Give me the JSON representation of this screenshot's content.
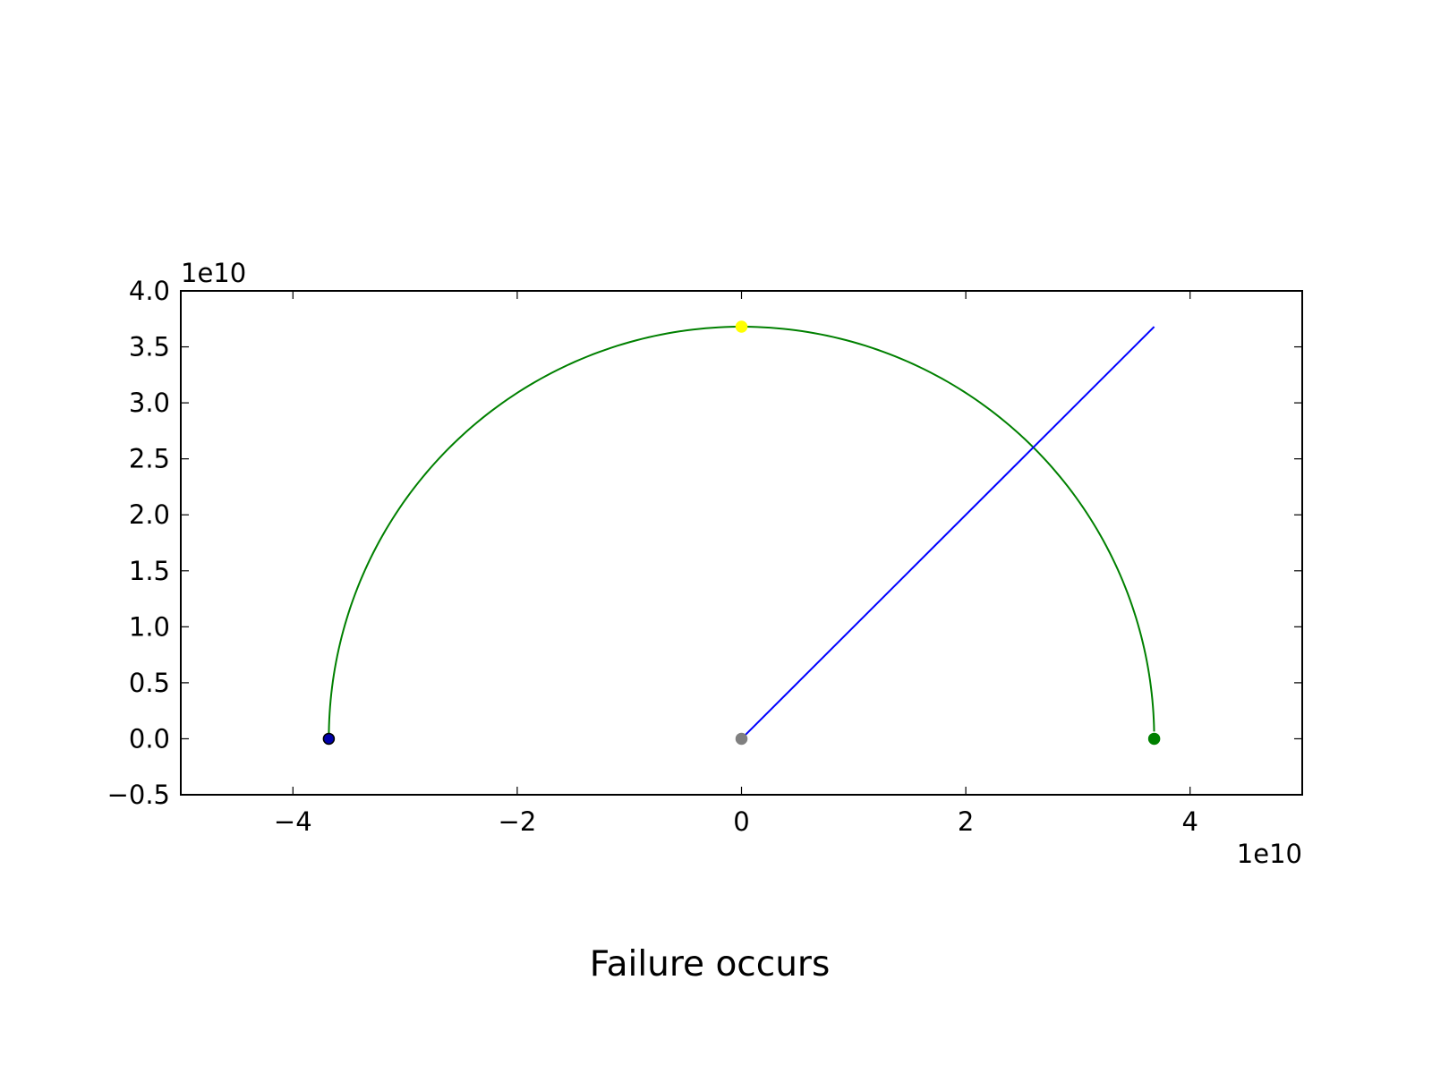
{
  "chart_data": {
    "type": "line",
    "title": "",
    "caption": "Failure occurs",
    "xlabel": "",
    "ylabel": "",
    "x_offset_text": "1e10",
    "y_offset_text": "1e10",
    "xlim": [
      -5.0,
      5.0
    ],
    "ylim": [
      -0.5,
      4.0
    ],
    "x_unit_scale": 10000000000.0,
    "y_unit_scale": 10000000000.0,
    "xticks": [
      -4,
      -2,
      0,
      2,
      4
    ],
    "xtick_labels": [
      "−4",
      "−2",
      "0",
      "2",
      "4"
    ],
    "yticks": [
      -0.5,
      0.0,
      0.5,
      1.0,
      1.5,
      2.0,
      2.5,
      3.0,
      3.5,
      4.0
    ],
    "ytick_labels": [
      "−0.5",
      "0.0",
      "0.5",
      "1.0",
      "1.5",
      "2.0",
      "2.5",
      "3.0",
      "3.5",
      "4.0"
    ],
    "grid": false,
    "legend": "none",
    "series": [
      {
        "kind": "arc",
        "color": "#008000",
        "center": [
          0,
          0
        ],
        "radius": 3.68,
        "start_deg": 180,
        "end_deg": 1
      },
      {
        "kind": "line",
        "color": "#0000ff",
        "x": [
          0,
          3.68
        ],
        "y": [
          0,
          3.68
        ]
      }
    ],
    "points": [
      {
        "x": 0,
        "y": 3.68,
        "color": "#ffff00",
        "edge": "#ffff00"
      },
      {
        "x": -3.68,
        "y": 0,
        "color": "#0000aa",
        "edge": "#000000"
      },
      {
        "x": 0,
        "y": 0,
        "color": "#808080",
        "edge": "#808080"
      },
      {
        "x": 3.68,
        "y": 0,
        "color": "#008000",
        "edge": "#008000"
      }
    ]
  }
}
